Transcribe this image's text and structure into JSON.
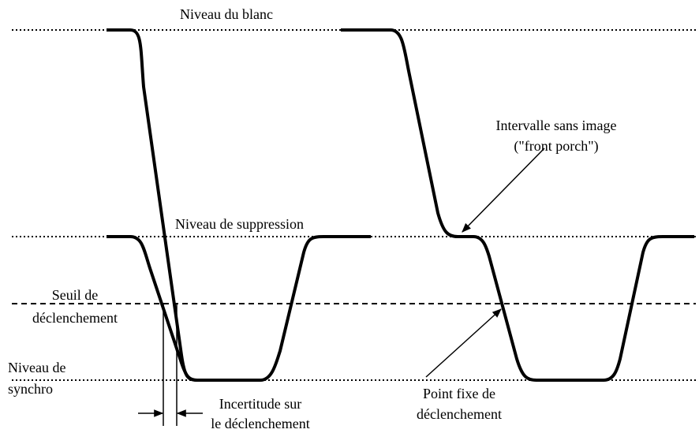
{
  "labels": {
    "white_level": "Niveau du blanc",
    "blanking_level": "Niveau de suppression",
    "trigger_threshold": [
      "Seuil de",
      "déclenchement"
    ],
    "sync_level": [
      "Niveau de",
      "synchro"
    ],
    "trigger_uncertainty": [
      "Incertitude sur",
      "le déclenchement"
    ],
    "front_porch": [
      "Intervalle sans image",
      "(\"front porch\")"
    ],
    "fixed_trigger_point": [
      "Point fixe de",
      "déclenchement"
    ]
  }
}
